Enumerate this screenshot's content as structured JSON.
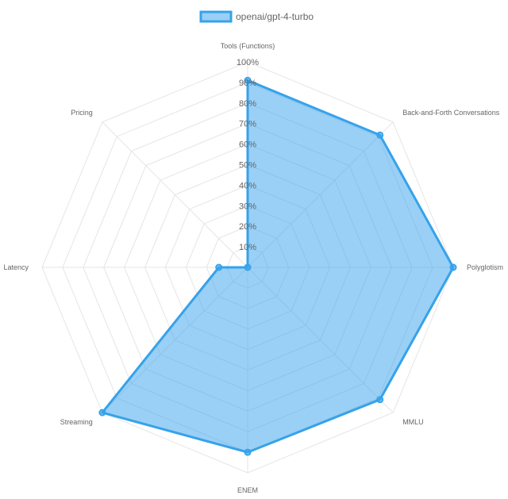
{
  "chart_data": {
    "type": "radar",
    "axes": [
      "Tools (Functions)",
      "Back-and-Forth Conversations",
      "Polyglotism",
      "MMLU",
      "ENEM",
      "Streaming",
      "Latency",
      "Pricing"
    ],
    "series": [
      {
        "name": "openai/gpt-4-turbo",
        "values": [
          91,
          91,
          100,
          91,
          90,
          100,
          14,
          0
        ]
      }
    ],
    "r_ticks": [
      "10%",
      "20%",
      "30%",
      "40%",
      "50%",
      "60%",
      "70%",
      "80%",
      "90%",
      "100%"
    ],
    "r_range": [
      0,
      100
    ],
    "legend_position": "top",
    "grid": true,
    "colors": {
      "series_stroke": "#36a2eb",
      "series_fill": "rgba(54,162,235,0.5)",
      "grid": "#e5e5e5",
      "text": "#666666"
    }
  }
}
